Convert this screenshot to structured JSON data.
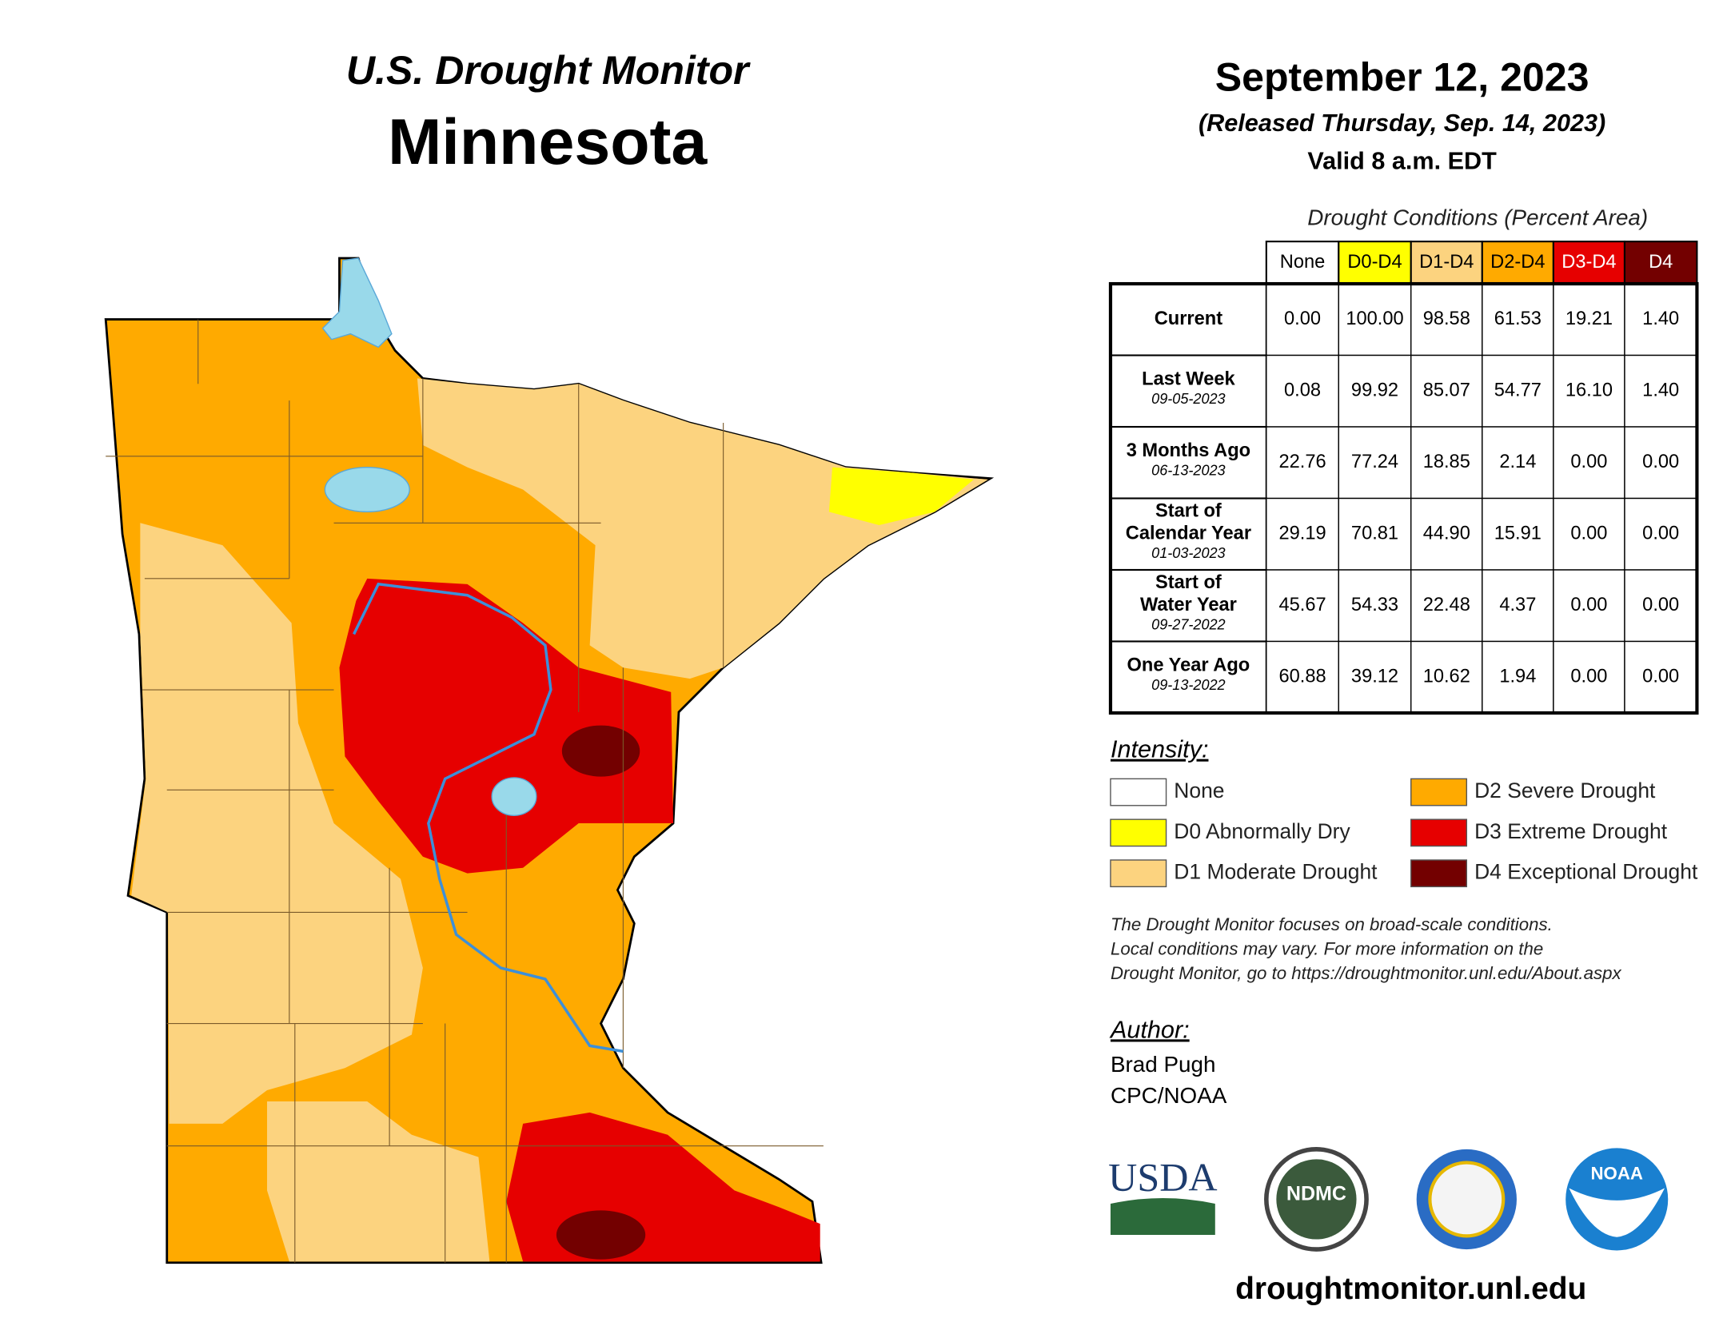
{
  "header": {
    "title": "U.S. Drought Monitor",
    "state": "Minnesota"
  },
  "date": {
    "title": "September 12, 2023",
    "released": "(Released Thursday, Sep. 14, 2023)",
    "valid": "Valid 8 a.m. EDT"
  },
  "table": {
    "caption": "Drought Conditions (Percent Area)",
    "columns": [
      {
        "label": "None",
        "color": "#ffffff",
        "text": "#000000"
      },
      {
        "label": "D0-D4",
        "color": "#ffff00",
        "text": "#000000"
      },
      {
        "label": "D1-D4",
        "color": "#fcd37f",
        "text": "#000000"
      },
      {
        "label": "D2-D4",
        "color": "#ffaa00",
        "text": "#000000"
      },
      {
        "label": "D3-D4",
        "color": "#e60000",
        "text": "#ffffff"
      },
      {
        "label": "D4",
        "color": "#730000",
        "text": "#ffffff"
      }
    ],
    "rows": [
      {
        "label": [
          "Current"
        ],
        "values": [
          "0.00",
          "100.00",
          "98.58",
          "61.53",
          "19.21",
          "1.40"
        ]
      },
      {
        "label": [
          "Last Week"
        ],
        "date": "09-05-2023",
        "values": [
          "0.08",
          "99.92",
          "85.07",
          "54.77",
          "16.10",
          "1.40"
        ]
      },
      {
        "label": [
          "3 Months Ago"
        ],
        "date": "06-13-2023",
        "values": [
          "22.76",
          "77.24",
          "18.85",
          "2.14",
          "0.00",
          "0.00"
        ]
      },
      {
        "label": [
          "Start of",
          "Calendar Year"
        ],
        "date": "01-03-2023",
        "values": [
          "29.19",
          "70.81",
          "44.90",
          "15.91",
          "0.00",
          "0.00"
        ]
      },
      {
        "label": [
          "Start of",
          "Water Year"
        ],
        "date": "09-27-2022",
        "values": [
          "45.67",
          "54.33",
          "22.48",
          "4.37",
          "0.00",
          "0.00"
        ]
      },
      {
        "label": [
          "One Year Ago"
        ],
        "date": "09-13-2022",
        "values": [
          "60.88",
          "39.12",
          "10.62",
          "1.94",
          "0.00",
          "0.00"
        ]
      }
    ]
  },
  "legend": {
    "title": "Intensity:",
    "items": [
      {
        "label": "None",
        "color": "#ffffff"
      },
      {
        "label": "D0 Abnormally Dry",
        "color": "#ffff00"
      },
      {
        "label": "D1 Moderate Drought",
        "color": "#fcd37f"
      },
      {
        "label": "D2 Severe Drought",
        "color": "#ffaa00"
      },
      {
        "label": "D3 Extreme Drought",
        "color": "#e60000"
      },
      {
        "label": "D4 Exceptional Drought",
        "color": "#730000"
      }
    ]
  },
  "note": [
    "The Drought Monitor focuses on broad-scale conditions.",
    "Local conditions may vary. For more information on the",
    "Drought Monitor, go to https://droughtmonitor.unl.edu/About.aspx"
  ],
  "author": {
    "title": "Author:",
    "lines": [
      "Brad Pugh",
      "CPC/NOAA"
    ]
  },
  "logos": [
    "USDA",
    "NDMC",
    "NOAA"
  ],
  "url": "droughtmonitor.unl.edu"
}
